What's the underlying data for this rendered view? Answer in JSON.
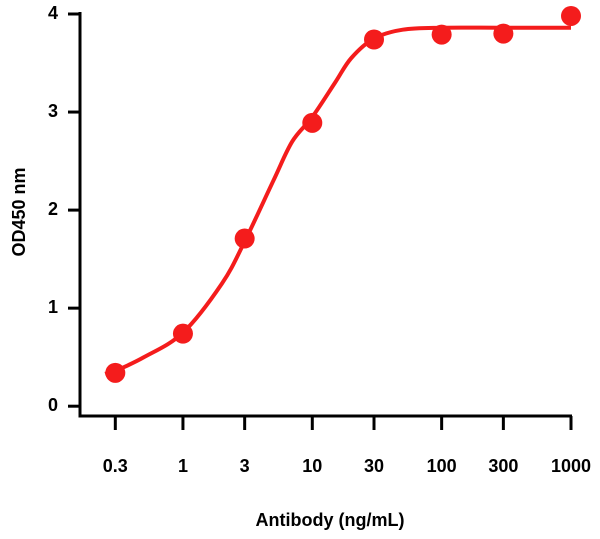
{
  "chart_data": {
    "type": "scatter",
    "x_label": "Antibody (ng/mL)",
    "y_label": "OD450 nm",
    "xscale": "log",
    "xlim": [
      0.16,
      1000
    ],
    "ylim": [
      -0.1,
      4
    ],
    "xticks": [
      0.3,
      1,
      3,
      10,
      30,
      100,
      300,
      1000
    ],
    "yticks": [
      0,
      1,
      2,
      3,
      4
    ],
    "series": [
      {
        "kind": "line",
        "color": "#f41c1c",
        "x": [
          0.25,
          0.3,
          0.5,
          1,
          2,
          3,
          5,
          7,
          10,
          15,
          20,
          30,
          50,
          100,
          300,
          1000
        ],
        "values": [
          0.33,
          0.36,
          0.5,
          0.75,
          1.25,
          1.68,
          2.3,
          2.7,
          2.95,
          3.3,
          3.55,
          3.75,
          3.84,
          3.86,
          3.86,
          3.86
        ]
      },
      {
        "kind": "scatter",
        "color": "#f41c1c",
        "x": [
          0.3,
          1,
          3,
          10,
          30,
          100,
          300,
          1000
        ],
        "values": [
          0.34,
          0.74,
          1.71,
          2.89,
          3.74,
          3.79,
          3.8,
          3.98
        ]
      }
    ]
  }
}
